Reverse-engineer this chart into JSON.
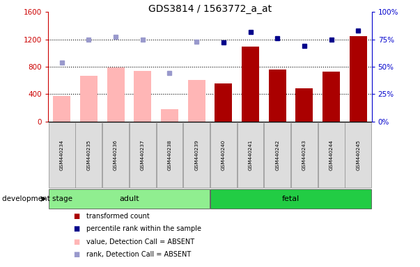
{
  "title": "GDS3814 / 1563772_a_at",
  "samples": [
    "GSM440234",
    "GSM440235",
    "GSM440236",
    "GSM440237",
    "GSM440238",
    "GSM440239",
    "GSM440240",
    "GSM440241",
    "GSM440242",
    "GSM440243",
    "GSM440244",
    "GSM440245"
  ],
  "absent_mask": [
    true,
    true,
    true,
    true,
    true,
    true,
    false,
    false,
    false,
    false,
    false,
    false
  ],
  "bar_values": [
    370,
    670,
    790,
    740,
    175,
    610,
    560,
    1090,
    760,
    490,
    730,
    1250
  ],
  "blue_dot_values": [
    null,
    null,
    null,
    null,
    null,
    null,
    72,
    82,
    76,
    69,
    75,
    83
  ],
  "light_blue_dot_values": [
    54,
    75,
    77,
    75,
    44,
    73,
    null,
    null,
    null,
    null,
    null,
    null
  ],
  "adult_color": "#90EE90",
  "fetal_color": "#22CC44",
  "bar_absent_color": "#FFB6B6",
  "bar_present_color": "#AA0000",
  "dot_present_color": "#00008B",
  "dot_absent_color": "#9999CC",
  "left_axis_color": "#CC0000",
  "right_axis_color": "#0000CC",
  "ylim_left": [
    0,
    1600
  ],
  "ylim_right": [
    0,
    100
  ],
  "yticks_left": [
    0,
    400,
    800,
    1200,
    1600
  ],
  "yticks_right": [
    0,
    25,
    50,
    75,
    100
  ],
  "background_color": "#DDDDDD",
  "grid_lines": [
    400,
    800,
    1200
  ]
}
